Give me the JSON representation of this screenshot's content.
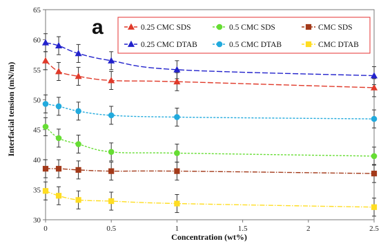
{
  "chart_data": {
    "type": "line",
    "panel_label": "a",
    "xlabel": "Concentration (wt%)",
    "ylabel": "Interfacial tension (mN/m)",
    "xlim": [
      0,
      2.5
    ],
    "ylim": [
      30,
      65
    ],
    "x_ticks": [
      "0",
      "0.5",
      "1",
      "1.5",
      "2",
      "2.5"
    ],
    "y_ticks": [
      "30",
      "35",
      "40",
      "45",
      "50",
      "55",
      "60",
      "65"
    ],
    "grid": false,
    "legend_position": "top-right",
    "x": [
      0,
      0.1,
      0.25,
      0.5,
      1,
      2.5
    ],
    "series": [
      {
        "name": "0.25 CMC SDS",
        "marker": "triangle",
        "color": "#e03a2a",
        "values": [
          56.5,
          54.7,
          53.9,
          53.2,
          53.0,
          52.0
        ],
        "error": [
          1.5,
          1.5,
          1.5,
          1.5,
          1.5,
          1.5
        ]
      },
      {
        "name": "0.5 CMC SDS",
        "marker": "circle",
        "color": "#66dd33",
        "values": [
          45.5,
          43.6,
          42.6,
          41.3,
          41.1,
          40.6
        ],
        "error": [
          1.5,
          1.5,
          1.5,
          1.5,
          1.5,
          1.5
        ]
      },
      {
        "name": "CMC SDS",
        "marker": "square",
        "color": "#a33a1a",
        "values": [
          38.5,
          38.5,
          38.3,
          38.1,
          38.1,
          37.7
        ],
        "error": [
          1.5,
          1.5,
          1.5,
          1.5,
          1.5,
          1.5
        ]
      },
      {
        "name": "0.25 CMC DTAB",
        "marker": "triangle",
        "color": "#2222cc",
        "values": [
          59.5,
          59.0,
          57.7,
          56.5,
          55.0,
          54.0
        ],
        "error": [
          1.5,
          1.5,
          1.5,
          1.5,
          1.5,
          1.5
        ]
      },
      {
        "name": "0.5 CMC DTAB",
        "marker": "circle",
        "color": "#22aadd",
        "values": [
          49.3,
          48.9,
          48.1,
          47.4,
          47.1,
          46.8
        ],
        "error": [
          1.5,
          1.5,
          1.5,
          1.5,
          1.5,
          1.5
        ]
      },
      {
        "name": "CMC DTAB",
        "marker": "square",
        "color": "#ffdd22",
        "values": [
          34.8,
          34.0,
          33.3,
          33.1,
          32.7,
          32.1
        ],
        "error": [
          1.5,
          1.5,
          1.5,
          1.5,
          1.5,
          1.5
        ]
      }
    ]
  }
}
